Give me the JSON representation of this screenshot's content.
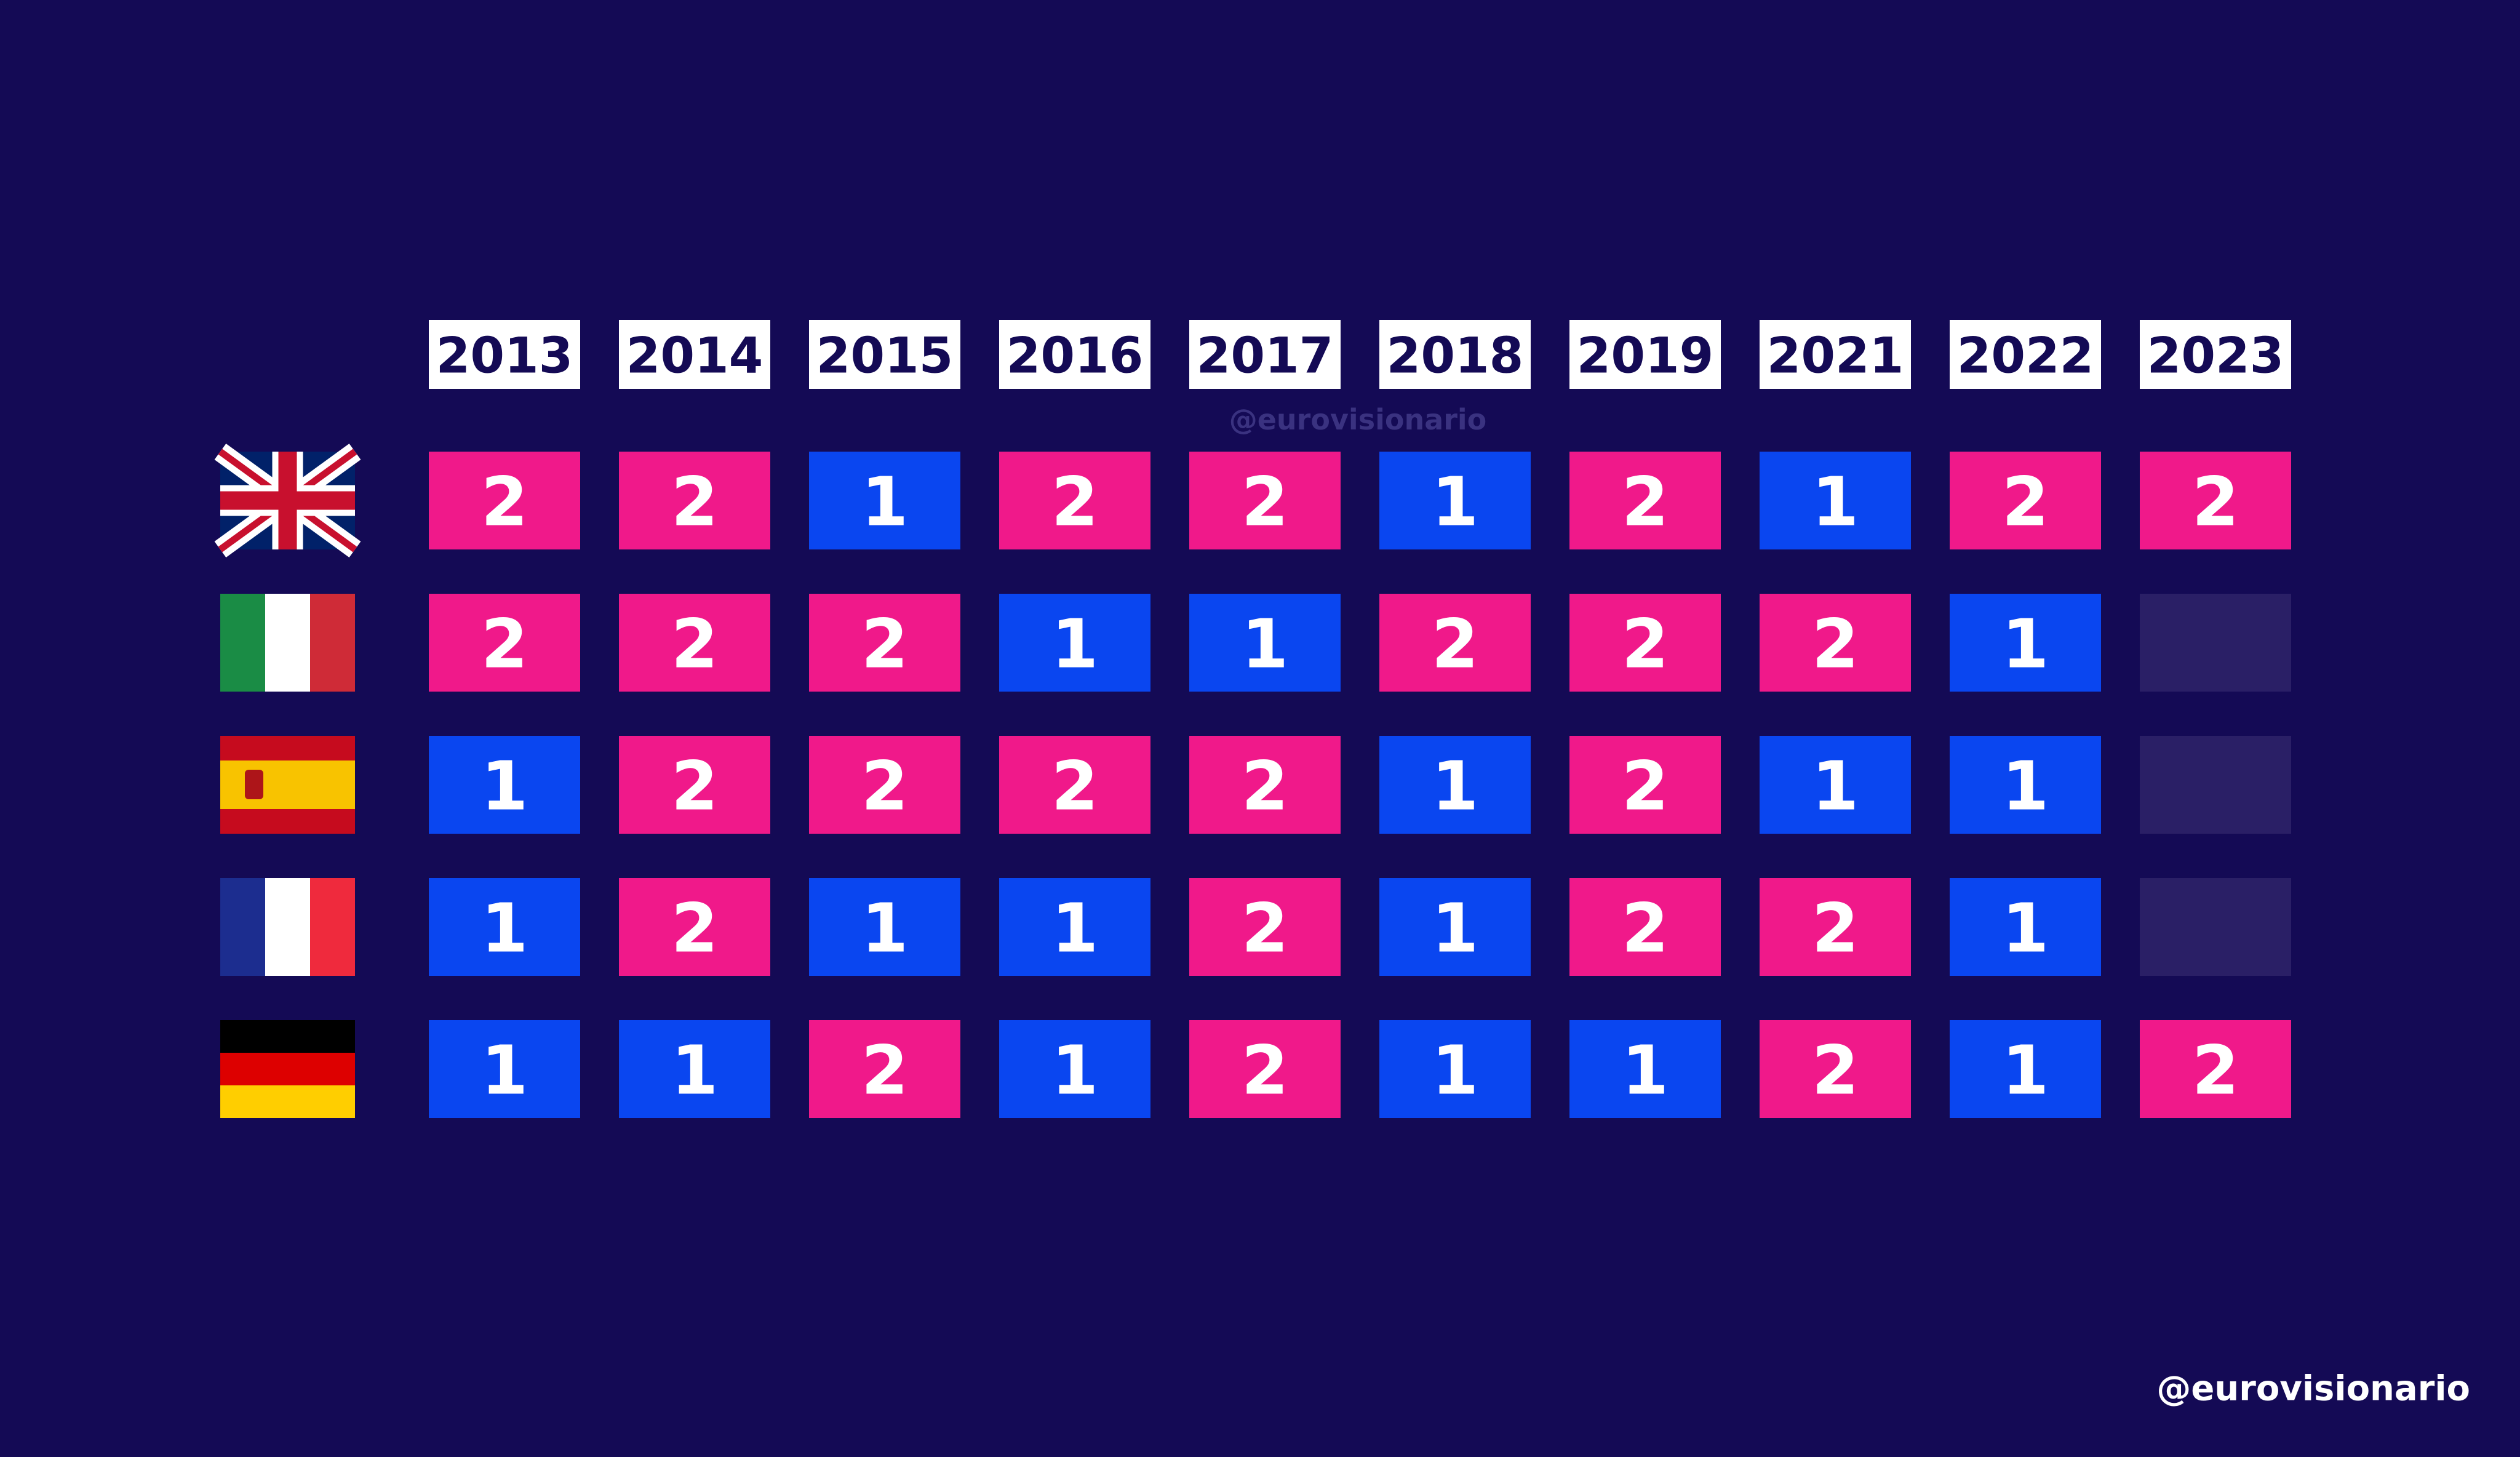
{
  "table": {
    "header": [
      "2013",
      "2014",
      "2015",
      "2016",
      "2017",
      "2018",
      "2019",
      "2021",
      "2022",
      "2023"
    ],
    "rows": [
      [
        2,
        2,
        1,
        2,
        2,
        1,
        2,
        1,
        2,
        2
      ],
      [
        2,
        2,
        2,
        1,
        1,
        2,
        2,
        2,
        1,
        null
      ],
      [
        1,
        2,
        2,
        2,
        2,
        1,
        2,
        1,
        1,
        null
      ],
      [
        1,
        2,
        1,
        1,
        2,
        1,
        2,
        2,
        1,
        null
      ],
      [
        1,
        1,
        2,
        1,
        2,
        1,
        1,
        2,
        1,
        2
      ]
    ],
    "colors": {
      "1": "#0a46f0",
      "2": "#f0198a",
      "empty": "#2a1f66"
    }
  },
  "watermark": "@eurovisionario",
  "credit": "@eurovisionario"
}
